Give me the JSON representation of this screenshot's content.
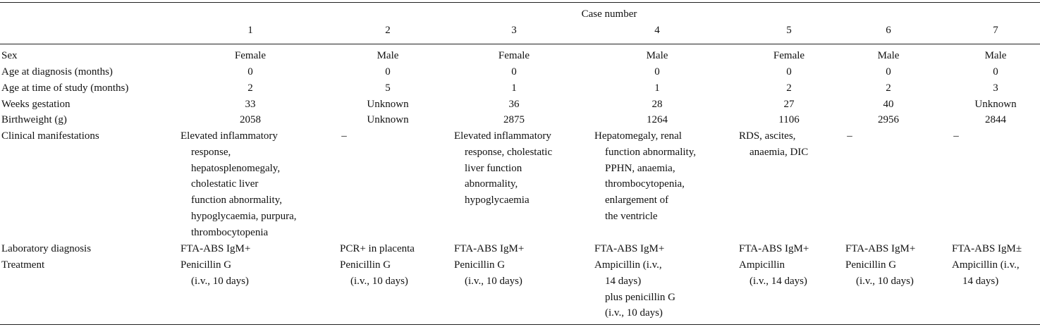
{
  "header": {
    "group_label": "Case number",
    "cases": [
      "1",
      "2",
      "3",
      "4",
      "5",
      "6",
      "7"
    ]
  },
  "rows": [
    {
      "label": "Sex",
      "values": [
        "Female",
        "Male",
        "Female",
        "Male",
        "Female",
        "Male",
        "Male"
      ]
    },
    {
      "label": "Age at diagnosis (months)",
      "values": [
        "0",
        "0",
        "0",
        "0",
        "0",
        "0",
        "0"
      ]
    },
    {
      "label": "Age at time of study (months)",
      "values": [
        "2",
        "5",
        "1",
        "1",
        "2",
        "2",
        "3"
      ]
    },
    {
      "label": "Weeks gestation",
      "values": [
        "33",
        "Unknown",
        "36",
        "28",
        "27",
        "40",
        "Unknown"
      ]
    },
    {
      "label": "Birthweight (g)",
      "values": [
        "2058",
        "Unknown",
        "2875",
        "1264",
        "1106",
        "2956",
        "2844"
      ]
    }
  ],
  "clinical": {
    "label": "Clinical manifestations",
    "values": [
      [
        "Elevated inflammatory",
        "response,",
        "hepatosplenomegaly,",
        "cholestatic liver",
        "function abnormality,",
        "hypoglycaemia, purpura,",
        "thrombocytopenia"
      ],
      [
        "–"
      ],
      [
        "Elevated inflammatory",
        "response, cholestatic",
        "liver function",
        "abnormality,",
        "hypoglycaemia"
      ],
      [
        "Hepatomegaly, renal",
        "function abnormality,",
        "PPHN, anaemia,",
        "thrombocytopenia,",
        "enlargement of",
        "the ventricle"
      ],
      [
        "RDS, ascites,",
        "anaemia, DIC"
      ],
      [
        "–"
      ],
      [
        "–"
      ]
    ]
  },
  "lab": {
    "label": "Laboratory diagnosis",
    "values": [
      "FTA-ABS IgM+",
      "PCR+ in placenta",
      "FTA-ABS IgM+",
      "FTA-ABS IgM+",
      "FTA-ABS IgM+",
      "FTA-ABS IgM+",
      "FTA-ABS IgM±"
    ]
  },
  "treatment": {
    "label": "Treatment",
    "values": [
      [
        "Penicillin G",
        "(i.v., 10 days)"
      ],
      [
        "Penicillin G",
        "(i.v., 10 days)"
      ],
      [
        "Penicillin G",
        "(i.v., 10 days)"
      ],
      [
        "Ampicillin (i.v.,",
        "14 days)",
        "plus penicillin G",
        "(i.v., 10 days)"
      ],
      [
        "Ampicillin",
        "(i.v., 14 days)"
      ],
      [
        "Penicillin G",
        "(i.v., 10 days)"
      ],
      [
        "Ampicillin (i.v.,",
        "14 days)"
      ]
    ]
  }
}
